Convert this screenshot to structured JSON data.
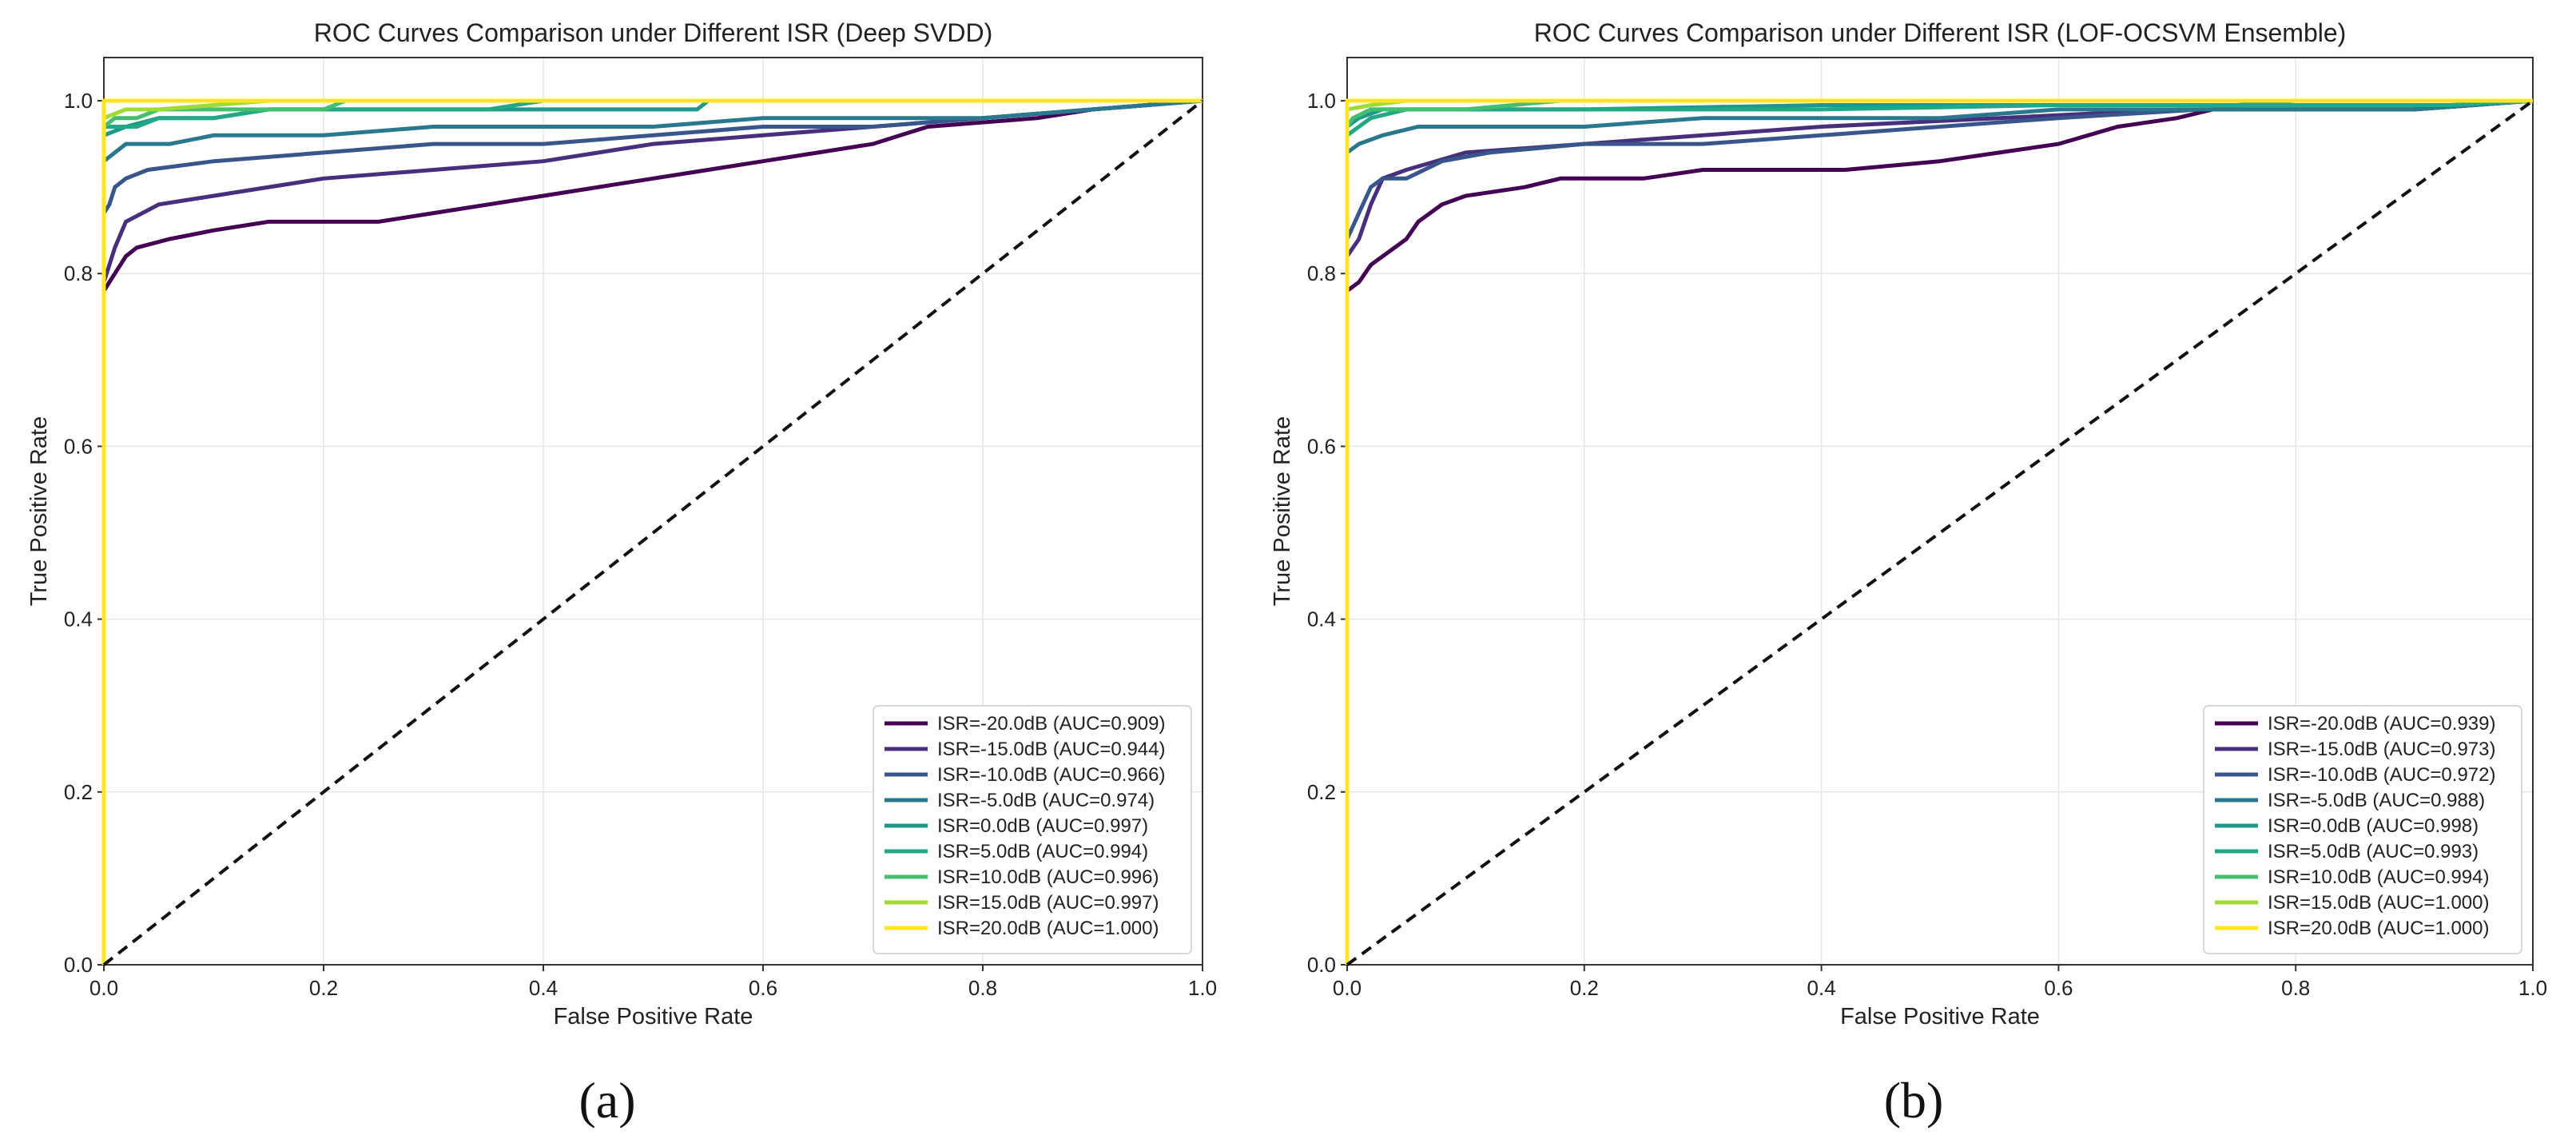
{
  "chart_data": [
    {
      "type": "line",
      "title": "ROC Curves Comparison under Different ISR (Deep SVDD)",
      "xlabel": "False Positive Rate",
      "ylabel": "True Positive Rate",
      "xlim": [
        0,
        1
      ],
      "ylim": [
        0,
        1.05
      ],
      "xticks": [
        "0.0",
        "0.2",
        "0.4",
        "0.6",
        "0.8",
        "1.0"
      ],
      "yticks": [
        "0.0",
        "0.2",
        "0.4",
        "0.6",
        "0.8",
        "1.0"
      ],
      "grid": true,
      "legend_position": "lower-right",
      "panel_label": "(a)",
      "diagonal": [
        [
          0,
          0
        ],
        [
          1,
          1
        ]
      ],
      "series": [
        {
          "name": "ISR=-20.0dB (AUC=0.909)",
          "color": "#440154",
          "points": [
            [
              0,
              0
            ],
            [
              0,
              0.78
            ],
            [
              0.005,
              0.79
            ],
            [
              0.01,
              0.8
            ],
            [
              0.02,
              0.82
            ],
            [
              0.03,
              0.83
            ],
            [
              0.06,
              0.84
            ],
            [
              0.1,
              0.85
            ],
            [
              0.15,
              0.86
            ],
            [
              0.25,
              0.86
            ],
            [
              0.3,
              0.87
            ],
            [
              0.35,
              0.88
            ],
            [
              0.4,
              0.89
            ],
            [
              0.45,
              0.9
            ],
            [
              0.5,
              0.91
            ],
            [
              0.55,
              0.92
            ],
            [
              0.6,
              0.93
            ],
            [
              0.65,
              0.94
            ],
            [
              0.7,
              0.95
            ],
            [
              0.75,
              0.97
            ],
            [
              0.85,
              0.98
            ],
            [
              0.9,
              0.99
            ],
            [
              1,
              1
            ]
          ]
        },
        {
          "name": "ISR=-15.0dB (AUC=0.944)",
          "color": "#472f7d",
          "points": [
            [
              0,
              0
            ],
            [
              0,
              0.79
            ],
            [
              0.005,
              0.81
            ],
            [
              0.01,
              0.83
            ],
            [
              0.02,
              0.86
            ],
            [
              0.05,
              0.88
            ],
            [
              0.1,
              0.89
            ],
            [
              0.15,
              0.9
            ],
            [
              0.2,
              0.91
            ],
            [
              0.3,
              0.92
            ],
            [
              0.4,
              0.93
            ],
            [
              0.5,
              0.95
            ],
            [
              0.6,
              0.96
            ],
            [
              0.7,
              0.97
            ],
            [
              0.8,
              0.98
            ],
            [
              0.9,
              0.99
            ],
            [
              1,
              1
            ]
          ]
        },
        {
          "name": "ISR=-10.0dB (AUC=0.966)",
          "color": "#39568c",
          "points": [
            [
              0,
              0
            ],
            [
              0,
              0.87
            ],
            [
              0.005,
              0.88
            ],
            [
              0.01,
              0.9
            ],
            [
              0.02,
              0.91
            ],
            [
              0.04,
              0.92
            ],
            [
              0.1,
              0.93
            ],
            [
              0.2,
              0.94
            ],
            [
              0.3,
              0.95
            ],
            [
              0.4,
              0.95
            ],
            [
              0.5,
              0.96
            ],
            [
              0.6,
              0.97
            ],
            [
              0.7,
              0.97
            ],
            [
              0.8,
              0.98
            ],
            [
              0.9,
              0.99
            ],
            [
              1,
              1
            ]
          ]
        },
        {
          "name": "ISR=-5.0dB (AUC=0.974)",
          "color": "#2a788e",
          "points": [
            [
              0,
              0
            ],
            [
              0,
              0.93
            ],
            [
              0.01,
              0.94
            ],
            [
              0.02,
              0.95
            ],
            [
              0.06,
              0.95
            ],
            [
              0.1,
              0.96
            ],
            [
              0.2,
              0.96
            ],
            [
              0.3,
              0.97
            ],
            [
              0.5,
              0.97
            ],
            [
              0.6,
              0.98
            ],
            [
              0.8,
              0.98
            ],
            [
              0.9,
              0.99
            ],
            [
              1,
              1
            ]
          ]
        },
        {
          "name": "ISR=0.0dB (AUC=0.997)",
          "color": "#1f988b",
          "points": [
            [
              0,
              0
            ],
            [
              0,
              0.96
            ],
            [
              0.02,
              0.97
            ],
            [
              0.05,
              0.98
            ],
            [
              0.1,
              0.98
            ],
            [
              0.15,
              0.99
            ],
            [
              0.3,
              0.99
            ],
            [
              0.54,
              0.99
            ],
            [
              0.55,
              1.0
            ],
            [
              1,
              1
            ]
          ]
        },
        {
          "name": "ISR=5.0dB (AUC=0.994)",
          "color": "#22a884",
          "points": [
            [
              0,
              0
            ],
            [
              0,
              0.97
            ],
            [
              0.03,
              0.97
            ],
            [
              0.05,
              0.98
            ],
            [
              0.1,
              0.98
            ],
            [
              0.15,
              0.99
            ],
            [
              0.35,
              0.99
            ],
            [
              0.4,
              1.0
            ],
            [
              1,
              1
            ]
          ]
        },
        {
          "name": "ISR=10.0dB (AUC=0.996)",
          "color": "#44bf70",
          "points": [
            [
              0,
              0
            ],
            [
              0,
              0.97
            ],
            [
              0.01,
              0.98
            ],
            [
              0.03,
              0.98
            ],
            [
              0.05,
              0.99
            ],
            [
              0.2,
              0.99
            ],
            [
              0.22,
              1.0
            ],
            [
              1,
              1
            ]
          ]
        },
        {
          "name": "ISR=15.0dB (AUC=0.997)",
          "color": "#a0da39",
          "points": [
            [
              0,
              0
            ],
            [
              0,
              0.98
            ],
            [
              0.02,
              0.99
            ],
            [
              0.05,
              0.99
            ],
            [
              0.1,
              0.995
            ],
            [
              0.15,
              1.0
            ],
            [
              1,
              1
            ]
          ]
        },
        {
          "name": "ISR=20.0dB (AUC=1.000)",
          "color": "#fde725",
          "points": [
            [
              0,
              0
            ],
            [
              0,
              1.0
            ],
            [
              1,
              1
            ]
          ]
        }
      ]
    },
    {
      "type": "line",
      "title": "ROC Curves Comparison under Different ISR (LOF-OCSVM Ensemble)",
      "xlabel": "False Positive Rate",
      "ylabel": "True Positive Rate",
      "xlim": [
        0,
        1
      ],
      "ylim": [
        0,
        1.05
      ],
      "xticks": [
        "0.0",
        "0.2",
        "0.4",
        "0.6",
        "0.8",
        "1.0"
      ],
      "yticks": [
        "0.0",
        "0.2",
        "0.4",
        "0.6",
        "0.8",
        "1.0"
      ],
      "grid": true,
      "legend_position": "lower-right",
      "panel_label": "(b)",
      "diagonal": [
        [
          0,
          0
        ],
        [
          1,
          1
        ]
      ],
      "series": [
        {
          "name": "ISR=-20.0dB (AUC=0.939)",
          "color": "#440154",
          "points": [
            [
              0,
              0
            ],
            [
              0,
              0.78
            ],
            [
              0.01,
              0.79
            ],
            [
              0.02,
              0.81
            ],
            [
              0.03,
              0.82
            ],
            [
              0.04,
              0.83
            ],
            [
              0.05,
              0.84
            ],
            [
              0.06,
              0.86
            ],
            [
              0.08,
              0.88
            ],
            [
              0.1,
              0.89
            ],
            [
              0.15,
              0.9
            ],
            [
              0.18,
              0.91
            ],
            [
              0.25,
              0.91
            ],
            [
              0.3,
              0.92
            ],
            [
              0.42,
              0.92
            ],
            [
              0.5,
              0.93
            ],
            [
              0.55,
              0.94
            ],
            [
              0.6,
              0.95
            ],
            [
              0.65,
              0.97
            ],
            [
              0.7,
              0.98
            ],
            [
              0.73,
              0.99
            ],
            [
              0.9,
              0.99
            ],
            [
              1,
              1
            ]
          ]
        },
        {
          "name": "ISR=-15.0dB (AUC=0.973)",
          "color": "#472f7d",
          "points": [
            [
              0,
              0
            ],
            [
              0,
              0.82
            ],
            [
              0.01,
              0.84
            ],
            [
              0.02,
              0.88
            ],
            [
              0.03,
              0.91
            ],
            [
              0.05,
              0.92
            ],
            [
              0.1,
              0.94
            ],
            [
              0.2,
              0.95
            ],
            [
              0.3,
              0.96
            ],
            [
              0.4,
              0.97
            ],
            [
              0.55,
              0.98
            ],
            [
              0.7,
              0.99
            ],
            [
              0.9,
              0.99
            ],
            [
              1,
              1
            ]
          ]
        },
        {
          "name": "ISR=-10.0dB (AUC=0.972)",
          "color": "#39568c",
          "points": [
            [
              0,
              0
            ],
            [
              0,
              0.84
            ],
            [
              0.01,
              0.87
            ],
            [
              0.02,
              0.9
            ],
            [
              0.03,
              0.91
            ],
            [
              0.05,
              0.91
            ],
            [
              0.08,
              0.93
            ],
            [
              0.12,
              0.94
            ],
            [
              0.2,
              0.95
            ],
            [
              0.3,
              0.95
            ],
            [
              0.4,
              0.96
            ],
            [
              0.6,
              0.98
            ],
            [
              0.72,
              0.99
            ],
            [
              0.9,
              0.99
            ],
            [
              1,
              1
            ]
          ]
        },
        {
          "name": "ISR=-5.0dB (AUC=0.988)",
          "color": "#2a788e",
          "points": [
            [
              0,
              0
            ],
            [
              0,
              0.94
            ],
            [
              0.01,
              0.95
            ],
            [
              0.03,
              0.96
            ],
            [
              0.06,
              0.97
            ],
            [
              0.2,
              0.97
            ],
            [
              0.3,
              0.98
            ],
            [
              0.5,
              0.98
            ],
            [
              0.6,
              0.99
            ],
            [
              0.9,
              0.99
            ],
            [
              1,
              1
            ]
          ]
        },
        {
          "name": "ISR=0.0dB (AUC=0.998)",
          "color": "#1f988b",
          "points": [
            [
              0,
              0
            ],
            [
              0,
              0.97
            ],
            [
              0.01,
              0.98
            ],
            [
              0.03,
              0.99
            ],
            [
              0.2,
              0.99
            ],
            [
              0.4,
              0.995
            ],
            [
              0.75,
              0.995
            ],
            [
              0.8,
              1.0
            ],
            [
              1,
              1
            ]
          ]
        },
        {
          "name": "ISR=5.0dB (AUC=0.993)",
          "color": "#22a884",
          "points": [
            [
              0,
              0
            ],
            [
              0,
              0.96
            ],
            [
              0.01,
              0.97
            ],
            [
              0.02,
              0.98
            ],
            [
              0.05,
              0.99
            ],
            [
              0.4,
              0.99
            ],
            [
              0.6,
              0.995
            ],
            [
              0.93,
              0.995
            ],
            [
              1,
              1
            ]
          ]
        },
        {
          "name": "ISR=10.0dB (AUC=0.994)",
          "color": "#44bf70",
          "points": [
            [
              0,
              0
            ],
            [
              0,
              0.97
            ],
            [
              0.005,
              0.98
            ],
            [
              0.02,
              0.99
            ],
            [
              0.1,
              0.99
            ],
            [
              0.18,
              1.0
            ],
            [
              1,
              1
            ]
          ]
        },
        {
          "name": "ISR=15.0dB (AUC=1.000)",
          "color": "#a0da39",
          "points": [
            [
              0,
              0
            ],
            [
              0,
              0.99
            ],
            [
              0.02,
              0.995
            ],
            [
              0.05,
              1.0
            ],
            [
              1,
              1
            ]
          ]
        },
        {
          "name": "ISR=20.0dB (AUC=1.000)",
          "color": "#fde725",
          "points": [
            [
              0,
              0
            ],
            [
              0,
              1.0
            ],
            [
              1,
              1
            ]
          ]
        }
      ]
    }
  ]
}
